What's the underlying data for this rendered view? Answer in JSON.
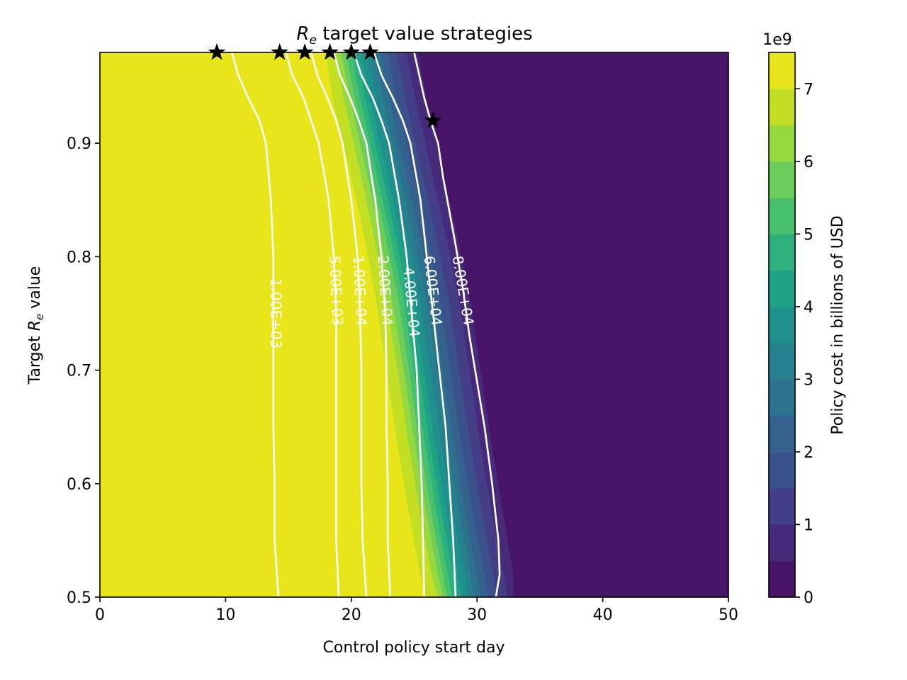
{
  "chart_data": {
    "type": "contour",
    "title": "target value strategies",
    "title_symbol": "R",
    "title_symbol_sub": "e",
    "xlabel": "Control policy start day",
    "ylabel_prefix": "Target",
    "ylabel_symbol": "R",
    "ylabel_symbol_sub": "e",
    "ylabel_suffix": "value",
    "xlim": [
      0,
      50
    ],
    "ylim": [
      0.5,
      0.98
    ],
    "xticks": [
      0,
      10,
      20,
      30,
      40,
      50
    ],
    "yticks": [
      0.5,
      0.6,
      0.7,
      0.8,
      0.9
    ],
    "colorbar": {
      "label": "Policy cost in billions of USD",
      "offset_text": "1e9",
      "ticks": [
        0,
        1,
        2,
        3,
        4,
        5,
        6,
        7
      ],
      "range": [
        0,
        7.5
      ],
      "levels": 15,
      "colors": [
        "#481467",
        "#472b7a",
        "#433e85",
        "#3b518b",
        "#34618d",
        "#2c718e",
        "#26818e",
        "#1f918c",
        "#1fa187",
        "#2db27d",
        "#48c16e",
        "#6ccd5a",
        "#96d83f",
        "#c2df23",
        "#e8e51a"
      ]
    },
    "filled_fronts": [
      {
        "level": 7.0,
        "points": [
          [
            18.0,
            0.98
          ],
          [
            18.5,
            0.94
          ],
          [
            19.8,
            0.88
          ],
          [
            21.0,
            0.82
          ],
          [
            22.0,
            0.76
          ],
          [
            22.8,
            0.7
          ],
          [
            23.6,
            0.64
          ],
          [
            24.5,
            0.58
          ],
          [
            25.5,
            0.52
          ],
          [
            26.0,
            0.5
          ]
        ]
      },
      {
        "level": 6.5,
        "points": [
          [
            18.8,
            0.98
          ],
          [
            19.4,
            0.94
          ],
          [
            20.6,
            0.88
          ],
          [
            21.8,
            0.82
          ],
          [
            22.8,
            0.76
          ],
          [
            23.7,
            0.7
          ],
          [
            24.5,
            0.64
          ],
          [
            25.4,
            0.58
          ],
          [
            26.4,
            0.52
          ],
          [
            26.9,
            0.5
          ]
        ]
      },
      {
        "level": 6.0,
        "points": [
          [
            19.2,
            0.98
          ],
          [
            19.9,
            0.94
          ],
          [
            21.1,
            0.88
          ],
          [
            22.3,
            0.82
          ],
          [
            23.3,
            0.76
          ],
          [
            24.2,
            0.7
          ],
          [
            25.0,
            0.64
          ],
          [
            25.9,
            0.58
          ],
          [
            26.9,
            0.52
          ],
          [
            27.3,
            0.5
          ]
        ]
      },
      {
        "level": 5.5,
        "points": [
          [
            19.6,
            0.98
          ],
          [
            20.3,
            0.94
          ],
          [
            21.5,
            0.88
          ],
          [
            22.7,
            0.82
          ],
          [
            23.8,
            0.76
          ],
          [
            24.6,
            0.7
          ],
          [
            25.4,
            0.64
          ],
          [
            26.3,
            0.58
          ],
          [
            27.3,
            0.52
          ],
          [
            27.6,
            0.5
          ]
        ]
      },
      {
        "level": 5.0,
        "points": [
          [
            20.0,
            0.98
          ],
          [
            20.7,
            0.94
          ],
          [
            21.9,
            0.88
          ],
          [
            23.1,
            0.82
          ],
          [
            24.2,
            0.76
          ],
          [
            25.0,
            0.7
          ],
          [
            25.8,
            0.64
          ],
          [
            26.7,
            0.58
          ],
          [
            27.7,
            0.52
          ],
          [
            28.0,
            0.5
          ]
        ]
      },
      {
        "level": 4.5,
        "points": [
          [
            20.4,
            0.98
          ],
          [
            21.1,
            0.94
          ],
          [
            22.3,
            0.88
          ],
          [
            23.5,
            0.82
          ],
          [
            24.6,
            0.76
          ],
          [
            25.4,
            0.7
          ],
          [
            26.2,
            0.64
          ],
          [
            27.1,
            0.58
          ],
          [
            28.1,
            0.52
          ],
          [
            28.4,
            0.5
          ]
        ]
      },
      {
        "level": 4.0,
        "points": [
          [
            20.8,
            0.98
          ],
          [
            21.5,
            0.94
          ],
          [
            22.7,
            0.88
          ],
          [
            23.9,
            0.82
          ],
          [
            25.0,
            0.76
          ],
          [
            25.8,
            0.7
          ],
          [
            26.6,
            0.64
          ],
          [
            27.5,
            0.58
          ],
          [
            28.5,
            0.52
          ],
          [
            28.8,
            0.5
          ]
        ]
      },
      {
        "level": 3.5,
        "points": [
          [
            21.3,
            0.98
          ],
          [
            22.0,
            0.94
          ],
          [
            23.2,
            0.88
          ],
          [
            24.4,
            0.82
          ],
          [
            25.5,
            0.76
          ],
          [
            26.3,
            0.7
          ],
          [
            27.1,
            0.64
          ],
          [
            28.0,
            0.58
          ],
          [
            29.0,
            0.52
          ],
          [
            29.3,
            0.5
          ]
        ]
      },
      {
        "level": 3.0,
        "points": [
          [
            21.8,
            0.98
          ],
          [
            22.5,
            0.94
          ],
          [
            23.7,
            0.88
          ],
          [
            24.9,
            0.82
          ],
          [
            26.0,
            0.76
          ],
          [
            26.8,
            0.7
          ],
          [
            27.6,
            0.64
          ],
          [
            28.5,
            0.58
          ],
          [
            29.5,
            0.52
          ],
          [
            29.8,
            0.5
          ]
        ]
      },
      {
        "level": 2.5,
        "points": [
          [
            22.3,
            0.98
          ],
          [
            23.0,
            0.94
          ],
          [
            24.2,
            0.88
          ],
          [
            25.4,
            0.82
          ],
          [
            26.5,
            0.76
          ],
          [
            27.3,
            0.7
          ],
          [
            28.1,
            0.64
          ],
          [
            29.0,
            0.58
          ],
          [
            30.0,
            0.52
          ],
          [
            30.3,
            0.5
          ]
        ]
      },
      {
        "level": 2.0,
        "points": [
          [
            22.9,
            0.98
          ],
          [
            23.6,
            0.94
          ],
          [
            24.8,
            0.88
          ],
          [
            26.0,
            0.82
          ],
          [
            27.1,
            0.76
          ],
          [
            27.9,
            0.7
          ],
          [
            28.7,
            0.64
          ],
          [
            29.6,
            0.58
          ],
          [
            30.6,
            0.52
          ],
          [
            30.9,
            0.5
          ]
        ]
      },
      {
        "level": 1.5,
        "points": [
          [
            23.6,
            0.98
          ],
          [
            24.3,
            0.94
          ],
          [
            25.5,
            0.88
          ],
          [
            26.7,
            0.82
          ],
          [
            27.8,
            0.76
          ],
          [
            28.6,
            0.7
          ],
          [
            29.4,
            0.64
          ],
          [
            30.3,
            0.58
          ],
          [
            31.3,
            0.52
          ],
          [
            31.6,
            0.5
          ]
        ]
      },
      {
        "level": 1.0,
        "points": [
          [
            24.4,
            0.98
          ],
          [
            25.1,
            0.94
          ],
          [
            26.3,
            0.88
          ],
          [
            27.5,
            0.82
          ],
          [
            28.6,
            0.76
          ],
          [
            29.4,
            0.7
          ],
          [
            30.2,
            0.64
          ],
          [
            31.1,
            0.58
          ],
          [
            32.1,
            0.52
          ],
          [
            32.4,
            0.5
          ]
        ]
      },
      {
        "level": 0.5,
        "points": [
          [
            25.3,
            0.98
          ],
          [
            26.0,
            0.94
          ],
          [
            27.2,
            0.88
          ],
          [
            28.4,
            0.82
          ],
          [
            29.5,
            0.76
          ],
          [
            30.3,
            0.7
          ],
          [
            31.1,
            0.64
          ],
          [
            32.0,
            0.58
          ],
          [
            32.9,
            0.52
          ],
          [
            32.9,
            0.5
          ]
        ]
      }
    ],
    "contour_lines": [
      {
        "label": "1.00E+03",
        "label_at": [
          14.0,
          0.75
        ],
        "points": [
          [
            10.5,
            0.98
          ],
          [
            11.0,
            0.96
          ],
          [
            11.8,
            0.94
          ],
          [
            12.7,
            0.92
          ],
          [
            13.2,
            0.9
          ],
          [
            13.6,
            0.85
          ],
          [
            13.8,
            0.8
          ],
          [
            13.8,
            0.75
          ],
          [
            13.8,
            0.7
          ],
          [
            13.8,
            0.65
          ],
          [
            13.9,
            0.6
          ],
          [
            13.9,
            0.55
          ],
          [
            14.2,
            0.5
          ]
        ]
      },
      {
        "label": "5.00E+03",
        "label_at": [
          18.8,
          0.77
        ],
        "points": [
          [
            14.8,
            0.98
          ],
          [
            15.3,
            0.96
          ],
          [
            16.2,
            0.94
          ],
          [
            16.8,
            0.92
          ],
          [
            17.4,
            0.9
          ],
          [
            18.2,
            0.85
          ],
          [
            18.6,
            0.8
          ],
          [
            18.8,
            0.75
          ],
          [
            18.8,
            0.7
          ],
          [
            18.8,
            0.65
          ],
          [
            18.8,
            0.6
          ],
          [
            18.8,
            0.55
          ],
          [
            19.0,
            0.5
          ]
        ]
      },
      {
        "label": "1.00E+04",
        "label_at": [
          20.7,
          0.77
        ],
        "points": [
          [
            16.8,
            0.98
          ],
          [
            17.3,
            0.96
          ],
          [
            18.1,
            0.94
          ],
          [
            18.8,
            0.92
          ],
          [
            19.3,
            0.9
          ],
          [
            20.0,
            0.85
          ],
          [
            20.5,
            0.8
          ],
          [
            20.7,
            0.75
          ],
          [
            20.8,
            0.7
          ],
          [
            20.8,
            0.65
          ],
          [
            20.8,
            0.6
          ],
          [
            20.9,
            0.55
          ],
          [
            21.2,
            0.5
          ]
        ]
      },
      {
        "label": "2.00E+04",
        "label_at": [
          22.7,
          0.77
        ],
        "points": [
          [
            18.6,
            0.98
          ],
          [
            19.1,
            0.96
          ],
          [
            19.9,
            0.94
          ],
          [
            20.6,
            0.92
          ],
          [
            21.2,
            0.9
          ],
          [
            21.9,
            0.85
          ],
          [
            22.4,
            0.8
          ],
          [
            22.7,
            0.75
          ],
          [
            22.8,
            0.7
          ],
          [
            22.8,
            0.65
          ],
          [
            22.9,
            0.6
          ],
          [
            22.9,
            0.55
          ],
          [
            23.1,
            0.5
          ]
        ]
      },
      {
        "label": "4.00E+04",
        "label_at": [
          24.8,
          0.76
        ],
        "points": [
          [
            20.2,
            0.98
          ],
          [
            20.8,
            0.96
          ],
          [
            21.7,
            0.94
          ],
          [
            22.4,
            0.92
          ],
          [
            23.0,
            0.9
          ],
          [
            23.8,
            0.85
          ],
          [
            24.4,
            0.8
          ],
          [
            24.8,
            0.75
          ],
          [
            25.2,
            0.7
          ],
          [
            25.4,
            0.65
          ],
          [
            25.6,
            0.6
          ],
          [
            25.7,
            0.55
          ],
          [
            25.8,
            0.5
          ]
        ]
      },
      {
        "label": "6.00E+04",
        "label_at": [
          26.5,
          0.77
        ],
        "points": [
          [
            21.8,
            0.98
          ],
          [
            22.4,
            0.96
          ],
          [
            23.3,
            0.94
          ],
          [
            24.1,
            0.92
          ],
          [
            24.7,
            0.9
          ],
          [
            25.5,
            0.85
          ],
          [
            26.0,
            0.8
          ],
          [
            26.5,
            0.75
          ],
          [
            27.0,
            0.7
          ],
          [
            27.5,
            0.65
          ],
          [
            27.8,
            0.6
          ],
          [
            28.1,
            0.55
          ],
          [
            28.3,
            0.5
          ]
        ]
      },
      {
        "label": "8.00E+04",
        "label_at": [
          28.9,
          0.77
        ],
        "points": [
          [
            25.0,
            0.98
          ],
          [
            25.4,
            0.96
          ],
          [
            25.8,
            0.94
          ],
          [
            26.3,
            0.92
          ],
          [
            26.9,
            0.9
          ],
          [
            27.3,
            0.87
          ],
          [
            27.8,
            0.84
          ],
          [
            28.3,
            0.81
          ],
          [
            28.9,
            0.77
          ],
          [
            29.4,
            0.73
          ],
          [
            30.0,
            0.69
          ],
          [
            30.6,
            0.65
          ],
          [
            31.2,
            0.6
          ],
          [
            31.7,
            0.55
          ],
          [
            31.8,
            0.52
          ],
          [
            31.5,
            0.5
          ]
        ]
      }
    ],
    "markers": [
      [
        9.3,
        0.98
      ],
      [
        14.3,
        0.98
      ],
      [
        16.3,
        0.98
      ],
      [
        18.3,
        0.98
      ],
      [
        20.0,
        0.98
      ],
      [
        21.5,
        0.98
      ],
      [
        26.5,
        0.92
      ]
    ]
  }
}
